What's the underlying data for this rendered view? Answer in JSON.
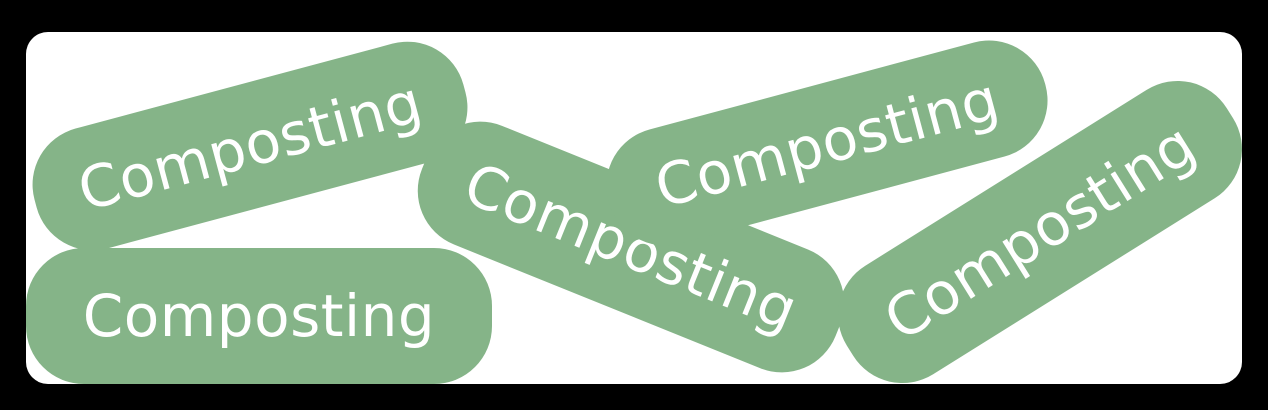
{
  "pills": [
    {
      "label": "Composting"
    },
    {
      "label": "Composting"
    },
    {
      "label": "Composting"
    },
    {
      "label": "Composting"
    },
    {
      "label": "Composting"
    }
  ],
  "colors": {
    "pill": "#85b488",
    "text": "#ffffff",
    "card": "#ffffff",
    "background": "#000000"
  }
}
